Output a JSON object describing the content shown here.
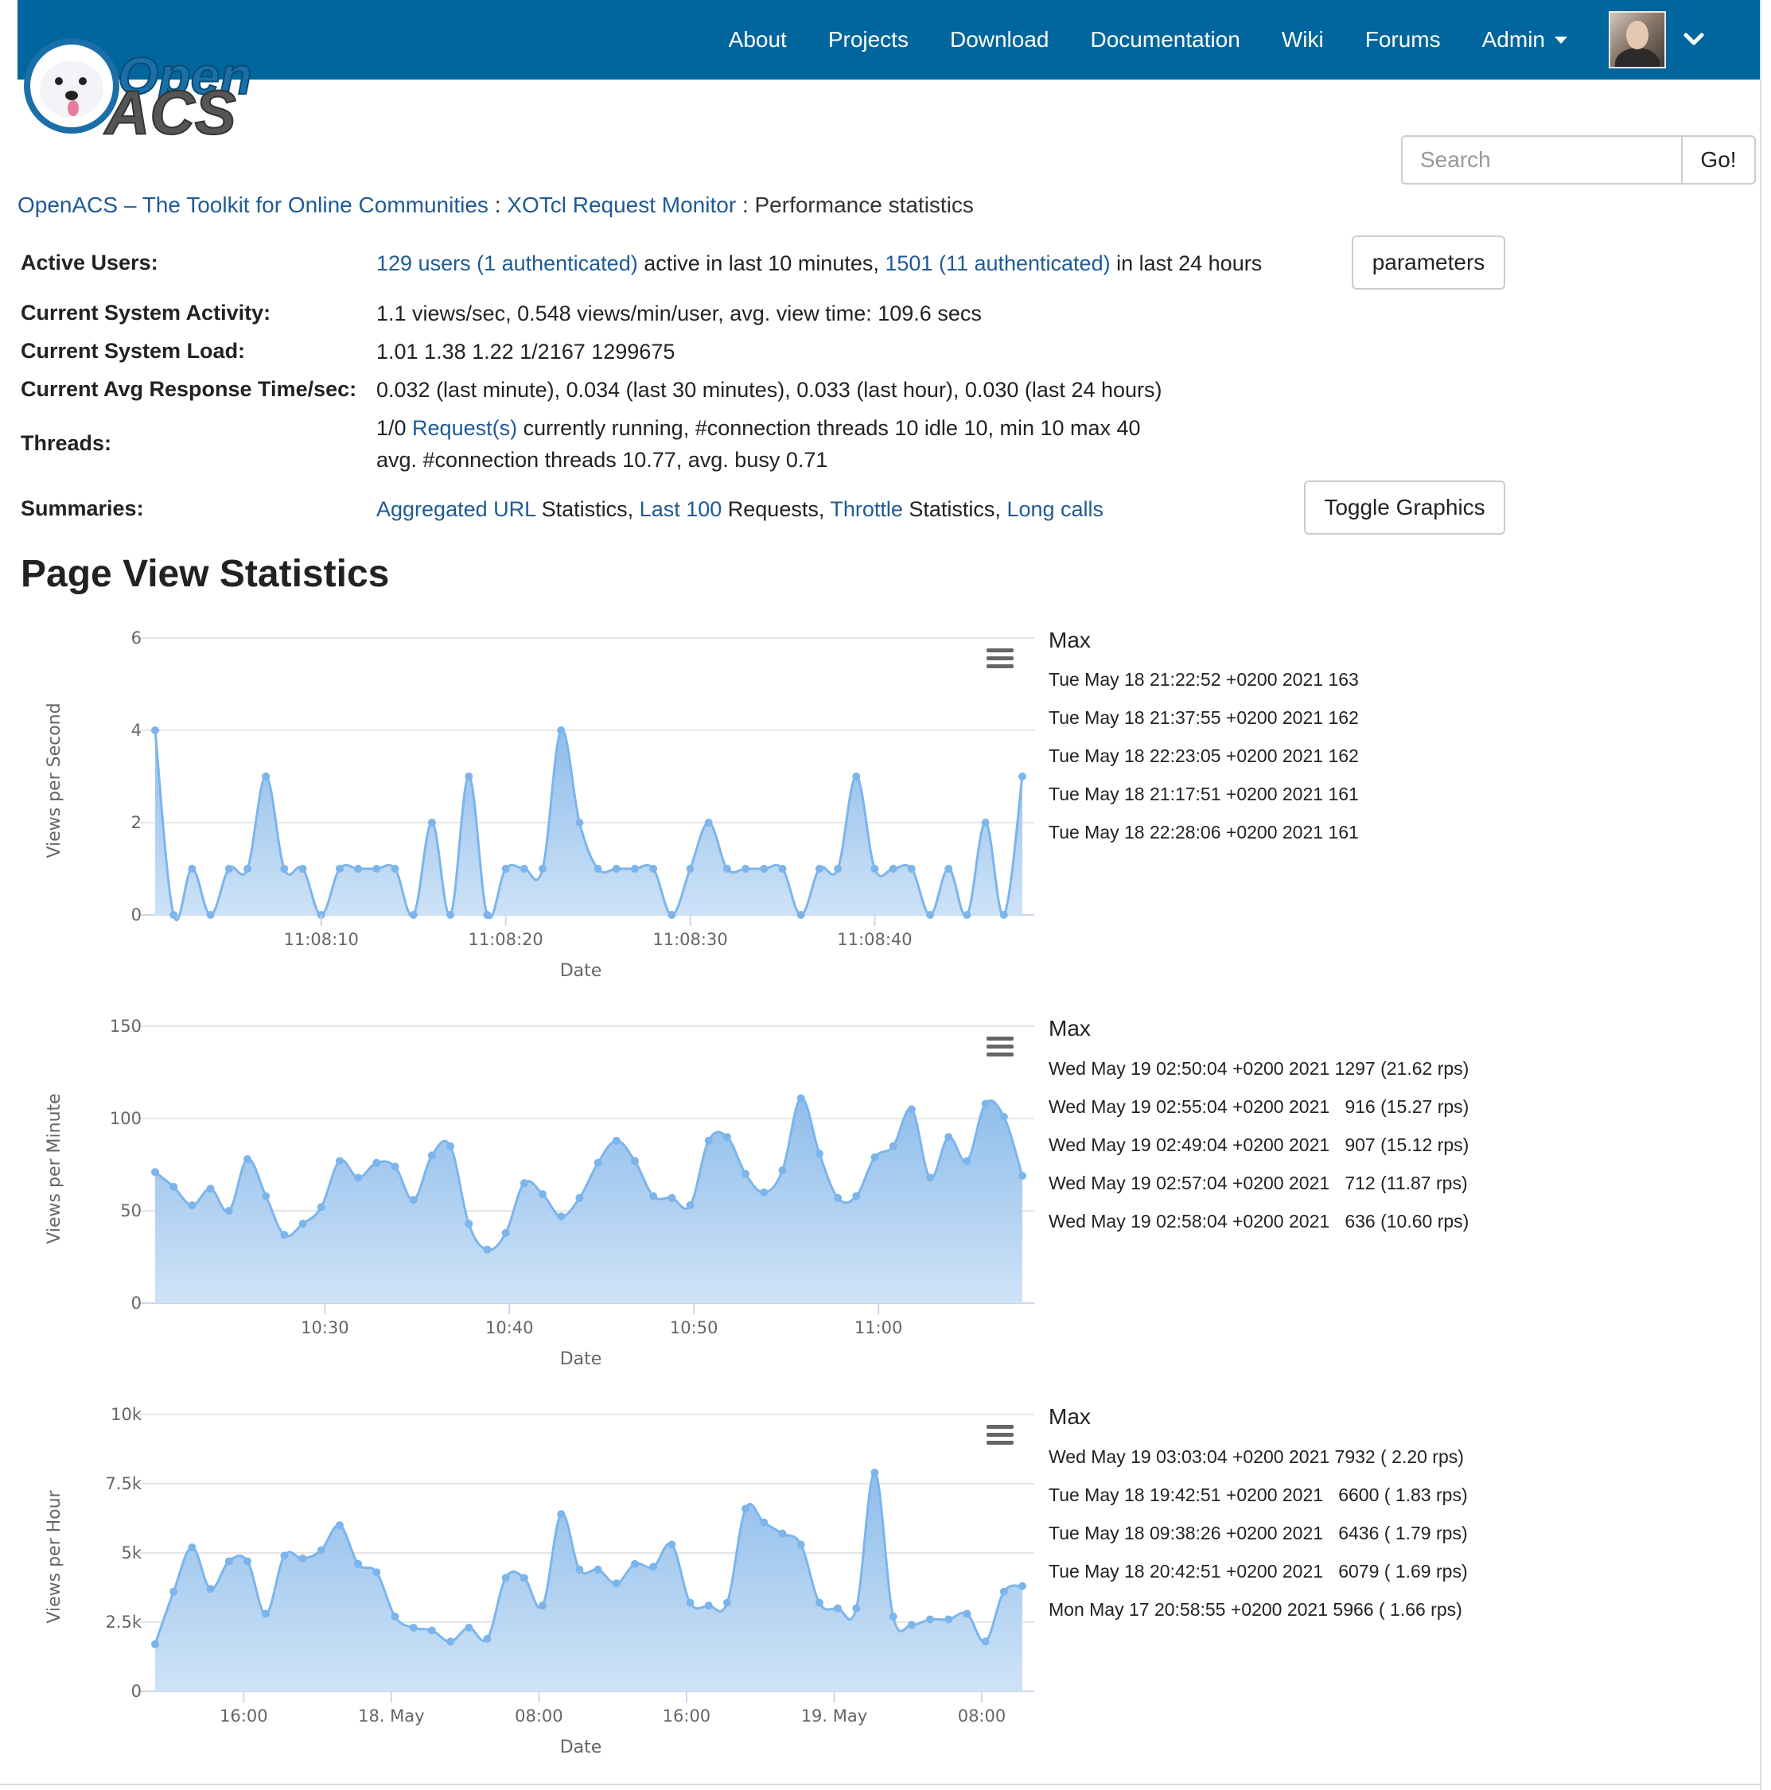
{
  "nav": {
    "items": [
      "About",
      "Projects",
      "Download",
      "Documentation",
      "Wiki",
      "Forums",
      "Admin"
    ],
    "admin_label": "Admin"
  },
  "logo": {
    "line1": "Open",
    "line2": "ACS"
  },
  "search": {
    "placeholder": "Search",
    "button": "Go!"
  },
  "breadcrumb": {
    "home": "OpenACS – The Toolkit for Online Communities",
    "parent": "XOTcl Request Monitor",
    "separator": ":",
    "current": "Performance statistics"
  },
  "info": {
    "active_users": {
      "label": "Active Users:",
      "link1": "129 users (1 authenticated)",
      "text1": " active in last 10 minutes, ",
      "link2": "1501 (11 authenticated)",
      "text2": " in last 24 hours"
    },
    "parameters_button": "parameters",
    "system_activity": {
      "label": "Current System Activity:",
      "value": "1.1 views/sec, 0.548 views/min/user, avg. view time: 109.6 secs"
    },
    "system_load": {
      "label": "Current System Load:",
      "value": "1.01 1.38 1.22 1/2167 1299675"
    },
    "response_time": {
      "label": "Current Avg Response Time/sec:",
      "value": "0.032 (last minute), 0.034 (last 30 minutes), 0.033 (last hour), 0.030 (last 24 hours)"
    },
    "threads": {
      "label": "Threads:",
      "line1_pre": "1/0 ",
      "line1_link": "Request(s)",
      "line1_post": " currently running, #connection threads 10 idle 10, min 10 max 40",
      "line2": "avg. #connection threads 10.77, avg. busy 0.71"
    },
    "summaries": {
      "label": "Summaries:",
      "link1": "Aggregated URL",
      "text1": " Statistics, ",
      "link2": "Last 100",
      "text2": " Requests, ",
      "link3": "Throttle",
      "text3": " Statistics, ",
      "link4": "Long calls"
    },
    "toggle_button": "Toggle Graphics"
  },
  "section_title": "Page View Statistics",
  "chart_data": [
    {
      "type": "area",
      "ylabel": "Views per Second",
      "xlabel": "Date",
      "ylim": [
        0,
        6
      ],
      "yticks": [
        0,
        2,
        4,
        6
      ],
      "ytick_labels": [
        "0",
        "2",
        "4",
        "6"
      ],
      "xlim": [
        1,
        48
      ],
      "xticks": [
        10,
        20,
        30,
        40
      ],
      "xtick_labels": [
        "11:08:10",
        "11:08:20",
        "11:08:30",
        "11:08:40"
      ],
      "x": [
        1,
        2,
        3,
        4,
        5,
        6,
        7,
        8,
        9,
        10,
        11,
        12,
        13,
        14,
        15,
        16,
        17,
        18,
        19,
        20,
        21,
        22,
        23,
        24,
        25,
        26,
        27,
        28,
        29,
        30,
        31,
        32,
        33,
        34,
        35,
        36,
        37,
        38,
        39,
        40,
        41,
        42,
        43,
        44,
        45,
        46,
        47,
        48
      ],
      "values": [
        4,
        0,
        1,
        0,
        1,
        1,
        3,
        1,
        1,
        0,
        1,
        1,
        1,
        1,
        0,
        2,
        0,
        3,
        0,
        1,
        1,
        1,
        4,
        2,
        1,
        1,
        1,
        1,
        0,
        1,
        2,
        1,
        1,
        1,
        1,
        0,
        1,
        1,
        3,
        1,
        1,
        1,
        0,
        1,
        0,
        2,
        0,
        3
      ],
      "max_title": "Max",
      "max_rows": [
        "Tue May 18 21:22:52 +0200 2021 163",
        "Tue May 18 21:37:55 +0200 2021 162",
        "Tue May 18 22:23:05 +0200 2021 162",
        "Tue May 18 21:17:51 +0200 2021 161",
        "Tue May 18 22:28:06 +0200 2021 161"
      ]
    },
    {
      "type": "area",
      "ylabel": "Views per Minute",
      "xlabel": "Date",
      "ylim": [
        0,
        150
      ],
      "yticks": [
        0,
        50,
        100,
        150
      ],
      "ytick_labels": [
        "0",
        "50",
        "100",
        "150"
      ],
      "xlim": [
        0,
        47
      ],
      "xticks": [
        9.2,
        19.2,
        29.2,
        39.2
      ],
      "xtick_labels": [
        "10:30",
        "10:40",
        "10:50",
        "11:00"
      ],
      "x": [
        0,
        1,
        2,
        3,
        4,
        5,
        6,
        7,
        8,
        9,
        10,
        11,
        12,
        13,
        14,
        15,
        16,
        17,
        18,
        19,
        20,
        21,
        22,
        23,
        24,
        25,
        26,
        27,
        28,
        29,
        30,
        31,
        32,
        33,
        34,
        35,
        36,
        37,
        38,
        39,
        40,
        41,
        42,
        43,
        44,
        45,
        46,
        47
      ],
      "values": [
        71,
        63,
        53,
        62,
        50,
        78,
        58,
        37,
        43,
        52,
        77,
        68,
        76,
        74,
        56,
        80,
        85,
        43,
        29,
        38,
        65,
        59,
        47,
        57,
        76,
        88,
        77,
        58,
        57,
        53,
        88,
        90,
        70,
        60,
        72,
        111,
        81,
        57,
        58,
        79,
        85,
        105,
        68,
        90,
        77,
        108,
        101,
        69
      ],
      "max_title": "Max",
      "max_rows": [
        "Wed May 19 02:50:04 +0200 2021 1297 (21.62 rps)",
        "Wed May 19 02:55:04 +0200 2021   916 (15.27 rps)",
        "Wed May 19 02:49:04 +0200 2021   907 (15.12 rps)",
        "Wed May 19 02:57:04 +0200 2021   712 (11.87 rps)",
        "Wed May 19 02:58:04 +0200 2021   636 (10.60 rps)"
      ]
    },
    {
      "type": "area",
      "ylabel": "Views per Hour",
      "xlabel": "Date",
      "ylim": [
        0,
        10000
      ],
      "yticks": [
        0,
        2500,
        5000,
        7500,
        10000
      ],
      "ytick_labels": [
        "0",
        "2.5k",
        "5k",
        "7.5k",
        "10k"
      ],
      "xlim": [
        0,
        47
      ],
      "xticks": [
        4.8,
        12.8,
        20.8,
        28.8,
        36.8,
        44.8
      ],
      "xtick_labels": [
        "16:00",
        "18. May",
        "08:00",
        "16:00",
        "19. May",
        "08:00"
      ],
      "x": [
        0,
        1,
        2,
        3,
        4,
        5,
        6,
        7,
        8,
        9,
        10,
        11,
        12,
        13,
        14,
        15,
        16,
        17,
        18,
        19,
        20,
        21,
        22,
        23,
        24,
        25,
        26,
        27,
        28,
        29,
        30,
        31,
        32,
        33,
        34,
        35,
        36,
        37,
        38,
        39,
        40,
        41,
        42,
        43,
        44,
        45,
        46,
        47
      ],
      "values": [
        1700,
        3600,
        5200,
        3700,
        4700,
        4700,
        2800,
        4900,
        4800,
        5100,
        6000,
        4600,
        4300,
        2700,
        2300,
        2200,
        1800,
        2300,
        1900,
        4100,
        4100,
        3100,
        6400,
        4400,
        4400,
        3900,
        4600,
        4500,
        5300,
        3200,
        3100,
        3200,
        6600,
        6100,
        5700,
        5300,
        3200,
        3000,
        3000,
        7900,
        2700,
        2400,
        2600,
        2600,
        2800,
        1800,
        3600,
        3800
      ],
      "max_title": "Max",
      "max_rows": [
        "Wed May 19 03:03:04 +0200 2021 7932 ( 2.20 rps)",
        "Tue May 18 19:42:51 +0200 2021   6600 ( 1.83 rps)",
        "Tue May 18 09:38:26 +0200 2021   6436 ( 1.79 rps)",
        "Tue May 18 20:42:51 +0200 2021   6079 ( 1.69 rps)",
        "Mon May 17 20:58:55 +0200 2021 5966 ( 1.66 rps)"
      ]
    }
  ],
  "colors": {
    "navbar": "#00669d",
    "link": "#1f5a96",
    "series_line": "#7cb5ec",
    "series_fill_top": "#8fbdeb",
    "series_fill_bottom": "#cfe3f7"
  }
}
